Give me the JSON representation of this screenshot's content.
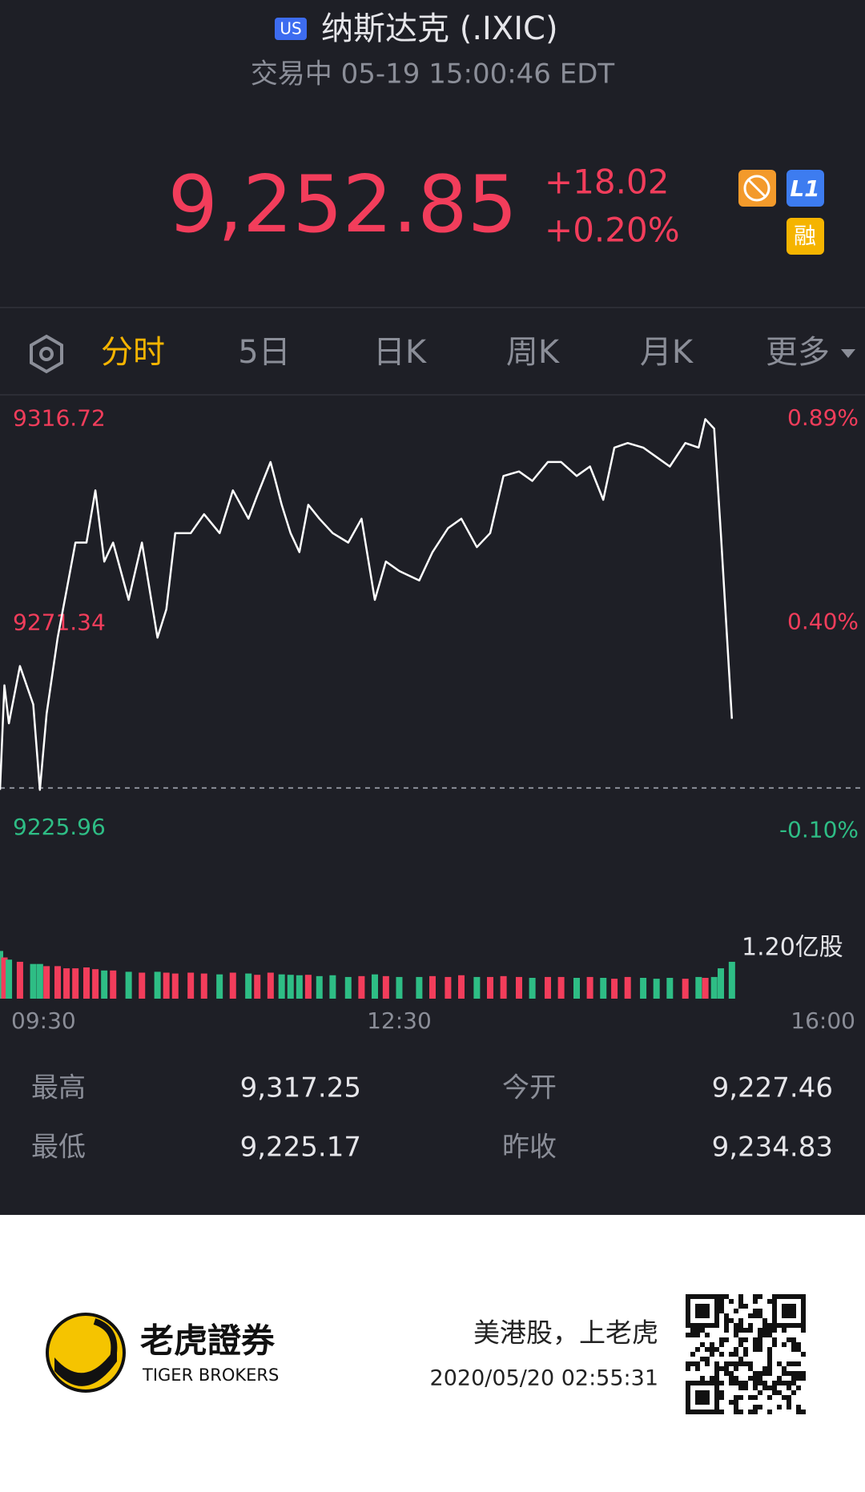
{
  "header": {
    "market_badge": "US",
    "title": "纳斯达克 (.IXIC)",
    "status": "交易中 05-19 15:00:46 EDT"
  },
  "quote": {
    "price": "9,252.85",
    "change": "+18.02",
    "change_pct": "+0.20%",
    "badges": [
      "L1",
      "融"
    ]
  },
  "tabs": [
    "分时",
    "5日",
    "日K",
    "周K",
    "月K",
    "更多"
  ],
  "chart_data": {
    "type": "line",
    "color": "#ffffff",
    "x": [
      0,
      2,
      4,
      9,
      15,
      18,
      21,
      26,
      30,
      34,
      39,
      43,
      47,
      51,
      58,
      64,
      71,
      75,
      79,
      86,
      92,
      99,
      105,
      112,
      116,
      122,
      127,
      131,
      135,
      139,
      144,
      150,
      157,
      163,
      169,
      174,
      180,
      189,
      195,
      202,
      208,
      215,
      221,
      227,
      234,
      240,
      247,
      253,
      260,
      266,
      272,
      277,
      283,
      290,
      296,
      302,
      309,
      315,
      318,
      322,
      325,
      330
    ],
    "values": [
      9234.4,
      9257.6,
      9249.2,
      9261.9,
      9253.4,
      9234.4,
      9251.3,
      9268.2,
      9278.7,
      9289.3,
      9289.3,
      9300.9,
      9285.1,
      9289.3,
      9276.6,
      9289.3,
      9268.2,
      9274.5,
      9291.4,
      9291.4,
      9295.6,
      9291.4,
      9300.9,
      9294.6,
      9299.8,
      9307.2,
      9297.7,
      9291.4,
      9287.2,
      9297.7,
      9294.6,
      9291.4,
      9289.3,
      9294.6,
      9276.6,
      9285.1,
      9283.0,
      9280.9,
      9287.2,
      9292.5,
      9294.6,
      9288.3,
      9291.4,
      9304.1,
      9305.1,
      9303.0,
      9307.2,
      9307.2,
      9304.1,
      9306.2,
      9298.8,
      9310.4,
      9311.4,
      9310.4,
      9308.3,
      9306.2,
      9311.4,
      9310.4,
      9316.7,
      9314.6,
      9291.4,
      9250.2
    ],
    "xlim": [
      0,
      390
    ],
    "xticks": [
      {
        "value": 0,
        "label": "09:30"
      },
      {
        "value": 180,
        "label": "12:30"
      },
      {
        "value": 390,
        "label": "16:00"
      }
    ],
    "ylim": [
      9213.3,
      9321.4
    ],
    "yticks": [
      9316.72,
      9271.34,
      9225.96
    ],
    "y2lim": [
      -0.23,
      0.94
    ],
    "y2ticks": [
      {
        "value": 0.89,
        "label": "0.89%"
      },
      {
        "value": 0.4,
        "label": "0.40%"
      },
      {
        "value": -0.1,
        "label": "-0.10%"
      }
    ],
    "baseline": 9234.83,
    "up_color": "#f23d5b",
    "down_color": "#2ebd85",
    "volume": {
      "values": [
        1.1,
        0.95,
        0.9,
        0.85,
        0.8,
        0.8,
        0.75,
        0.75,
        0.7,
        0.7,
        0.72,
        0.68,
        0.65,
        0.65,
        0.62,
        0.6,
        0.62,
        0.6,
        0.58,
        0.6,
        0.58,
        0.56,
        0.6,
        0.58,
        0.55,
        0.6,
        0.56,
        0.55,
        0.54,
        0.55,
        0.52,
        0.54,
        0.5,
        0.52,
        0.56,
        0.52,
        0.5,
        0.5,
        0.52,
        0.5,
        0.54,
        0.5,
        0.5,
        0.52,
        0.5,
        0.48,
        0.5,
        0.5,
        0.48,
        0.5,
        0.48,
        0.46,
        0.5,
        0.48,
        0.46,
        0.48,
        0.46,
        0.5,
        0.48,
        0.5,
        0.7,
        0.85
      ],
      "ylim": [
        0,
        1.2
      ],
      "ticks": [
        {
          "value": 1.2,
          "label": "1.20亿股"
        }
      ]
    }
  },
  "stats": [
    {
      "label": "最高",
      "value": "9,317.25"
    },
    {
      "label": "今开",
      "value": "9,227.46"
    },
    {
      "label": "最低",
      "value": "9,225.17"
    },
    {
      "label": "昨收",
      "value": "9,234.83"
    }
  ],
  "footer": {
    "brand": "老虎證券",
    "brand_en": "TIGER BROKERS",
    "slogan": "美港股，上老虎",
    "timestamp": "2020/05/20 02:55:31"
  }
}
